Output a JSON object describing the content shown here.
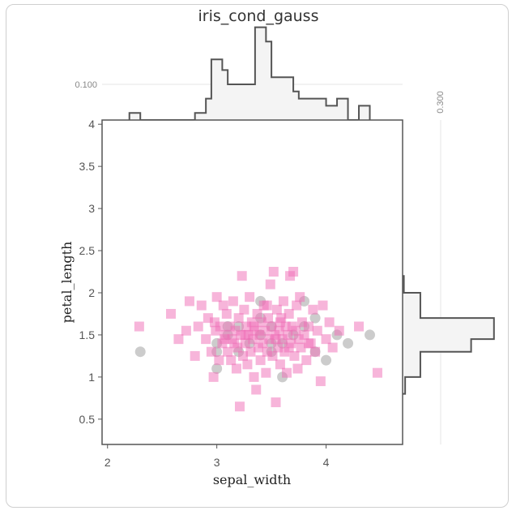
{
  "chart_data": {
    "type": "scatter",
    "title": "iris_cond_gauss",
    "xlabel": "sepal_width",
    "ylabel": "petal_length",
    "xlim": [
      1.95,
      4.7
    ],
    "ylim": [
      0.2,
      4.05
    ],
    "x_ticks": [
      "2",
      "3",
      "4"
    ],
    "y_ticks": [
      "0.5",
      "1",
      "1.5",
      "2",
      "2.5",
      "3",
      "3.5",
      "4"
    ],
    "marginal_refs": {
      "top": "0.100",
      "right": "0.300"
    },
    "series": [
      {
        "marker": "circle",
        "color": "#bbbbbb",
        "points": [
          [
            2.3,
            1.3
          ],
          [
            3.0,
            1.1
          ],
          [
            3.4,
            1.9
          ],
          [
            3.8,
            1.9
          ],
          [
            4.0,
            1.2
          ],
          [
            4.2,
            1.4
          ],
          [
            4.4,
            1.5
          ],
          [
            3.6,
            1.0
          ],
          [
            3.9,
            1.3
          ],
          [
            3.5,
            1.4
          ],
          [
            3.1,
            1.5
          ],
          [
            3.2,
            1.6
          ],
          [
            3.8,
            1.6
          ],
          [
            3.0,
            1.4
          ],
          [
            3.4,
            1.5
          ],
          [
            3.7,
            1.5
          ],
          [
            3.0,
            1.3
          ],
          [
            3.2,
            1.3
          ],
          [
            3.3,
            1.4
          ],
          [
            3.5,
            1.3
          ],
          [
            3.4,
            1.7
          ],
          [
            3.1,
            1.6
          ],
          [
            3.6,
            1.4
          ],
          [
            4.1,
            1.5
          ],
          [
            3.9,
            1.7
          ],
          [
            3.5,
            1.6
          ]
        ]
      },
      {
        "marker": "square",
        "color": "#f06bb5",
        "points": [
          [
            2.29,
            1.6
          ],
          [
            2.58,
            1.75
          ],
          [
            2.65,
            1.45
          ],
          [
            2.72,
            1.55
          ],
          [
            2.75,
            1.9
          ],
          [
            2.8,
            1.25
          ],
          [
            2.83,
            1.6
          ],
          [
            2.86,
            1.85
          ],
          [
            2.9,
            1.45
          ],
          [
            2.92,
            1.7
          ],
          [
            2.95,
            1.3
          ],
          [
            2.97,
            1.0
          ],
          [
            2.99,
            1.55
          ],
          [
            3.0,
            1.95
          ],
          [
            3.02,
            1.2
          ],
          [
            3.03,
            1.6
          ],
          [
            3.05,
            1.4
          ],
          [
            3.06,
            1.85
          ],
          [
            3.08,
            1.5
          ],
          [
            3.09,
            1.75
          ],
          [
            3.1,
            1.3
          ],
          [
            3.12,
            1.6
          ],
          [
            3.13,
            1.2
          ],
          [
            3.14,
            1.45
          ],
          [
            3.15,
            1.9
          ],
          [
            3.17,
            1.55
          ],
          [
            3.18,
            1.1
          ],
          [
            3.19,
            1.35
          ],
          [
            3.2,
            1.7
          ],
          [
            3.21,
            0.65
          ],
          [
            3.22,
            1.5
          ],
          [
            3.23,
            2.2
          ],
          [
            3.24,
            1.25
          ],
          [
            3.25,
            1.8
          ],
          [
            3.26,
            1.4
          ],
          [
            3.27,
            1.6
          ],
          [
            3.28,
            1.15
          ],
          [
            3.29,
            1.5
          ],
          [
            3.3,
            1.95
          ],
          [
            3.31,
            1.3
          ],
          [
            3.32,
            1.65
          ],
          [
            3.33,
            1.45
          ],
          [
            3.34,
            1.0
          ],
          [
            3.35,
            1.55
          ],
          [
            3.36,
            0.85
          ],
          [
            3.37,
            1.75
          ],
          [
            3.38,
            1.35
          ],
          [
            3.39,
            1.5
          ],
          [
            3.4,
            1.2
          ],
          [
            3.41,
            1.65
          ],
          [
            3.42,
            1.4
          ],
          [
            3.43,
            1.85
          ],
          [
            3.44,
            1.55
          ],
          [
            3.45,
            1.05
          ],
          [
            3.46,
            1.3
          ],
          [
            3.47,
            1.7
          ],
          [
            3.48,
            1.45
          ],
          [
            3.49,
            2.1
          ],
          [
            3.5,
            1.6
          ],
          [
            3.51,
            1.25
          ],
          [
            3.52,
            2.25
          ],
          [
            3.53,
            1.5
          ],
          [
            3.54,
            0.7
          ],
          [
            3.55,
            1.8
          ],
          [
            3.56,
            1.35
          ],
          [
            3.57,
            1.55
          ],
          [
            3.58,
            1.15
          ],
          [
            3.59,
            1.7
          ],
          [
            3.6,
            1.45
          ],
          [
            3.61,
            1.9
          ],
          [
            3.62,
            1.3
          ],
          [
            3.63,
            1.6
          ],
          [
            3.64,
            1.05
          ],
          [
            3.65,
            1.5
          ],
          [
            3.66,
            1.75
          ],
          [
            3.67,
            2.2
          ],
          [
            3.68,
            1.4
          ],
          [
            3.69,
            1.6
          ],
          [
            3.7,
            2.25
          ],
          [
            3.71,
            1.25
          ],
          [
            3.72,
            1.55
          ],
          [
            3.73,
            1.85
          ],
          [
            3.74,
            1.1
          ],
          [
            3.75,
            1.45
          ],
          [
            3.76,
            1.95
          ],
          [
            3.77,
            1.35
          ],
          [
            3.78,
            1.65
          ],
          [
            3.8,
            1.5
          ],
          [
            3.82,
            1.2
          ],
          [
            3.84,
            1.6
          ],
          [
            3.86,
            1.4
          ],
          [
            3.88,
            1.8
          ],
          [
            3.9,
            1.3
          ],
          [
            3.92,
            1.55
          ],
          [
            3.95,
            0.95
          ],
          [
            3.97,
            1.85
          ],
          [
            4.0,
            1.45
          ],
          [
            4.03,
            1.65
          ],
          [
            4.06,
            1.35
          ],
          [
            4.12,
            1.55
          ],
          [
            4.3,
            1.6
          ],
          [
            4.47,
            1.05
          ],
          [
            2.98,
            1.65
          ],
          [
            3.07,
            1.45
          ],
          [
            3.16,
            1.4
          ],
          [
            3.46,
            1.85
          ],
          [
            3.58,
            1.65
          ],
          [
            3.66,
            1.35
          ],
          [
            3.34,
            1.6
          ],
          [
            3.26,
            1.5
          ],
          [
            3.54,
            1.45
          ],
          [
            3.84,
            1.4
          ]
        ]
      }
    ],
    "marginal_top": {
      "edges": [
        2.2,
        2.3,
        2.8,
        2.9,
        2.95,
        3.05,
        3.1,
        3.3,
        3.35,
        3.45,
        3.5,
        3.55,
        3.7,
        3.75,
        3.95,
        4.0,
        4.1,
        4.2,
        4.3,
        4.4
      ],
      "values": [
        0.02,
        0.0,
        0.02,
        0.06,
        0.17,
        0.14,
        0.1,
        0.1,
        0.26,
        0.22,
        0.12,
        0.12,
        0.08,
        0.06,
        0.06,
        0.04,
        0.06,
        0.0,
        0.04
      ]
    },
    "marginal_right": {
      "edges": [
        0.8,
        1.0,
        1.3,
        1.45,
        1.7,
        2.0,
        2.2
      ],
      "values": [
        0.02,
        0.14,
        0.54,
        0.72,
        0.14,
        0.01
      ]
    }
  }
}
